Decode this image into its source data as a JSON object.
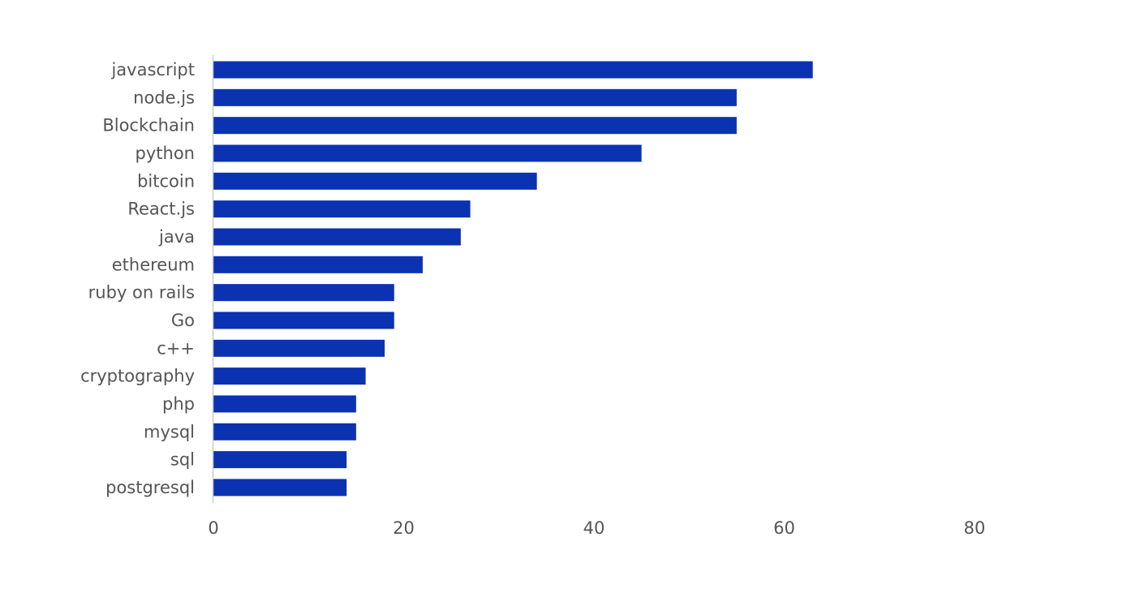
{
  "chart_data": {
    "type": "bar",
    "orientation": "horizontal",
    "categories": [
      "javascript",
      "node.js",
      "Blockchain",
      "python",
      "bitcoin",
      "React.js",
      "java",
      "ethereum",
      "ruby on rails",
      "Go",
      "c++",
      "cryptography",
      "php",
      "mysql",
      "sql",
      "postgresql"
    ],
    "values": [
      63,
      55,
      55,
      45,
      34,
      27,
      26,
      22,
      19,
      19,
      18,
      16,
      15,
      15,
      14,
      14
    ],
    "xlim": [
      0,
      80
    ],
    "xticks": [
      0,
      20,
      40,
      60,
      80
    ],
    "xtick_labels": [
      "0",
      "20",
      "40",
      "60",
      "80"
    ],
    "title": "",
    "xlabel": "",
    "ylabel": "",
    "bar_color": "#0b32b0",
    "axis_color": "#cccccc",
    "label_color": "#555555",
    "grid": false,
    "legend": false
  }
}
